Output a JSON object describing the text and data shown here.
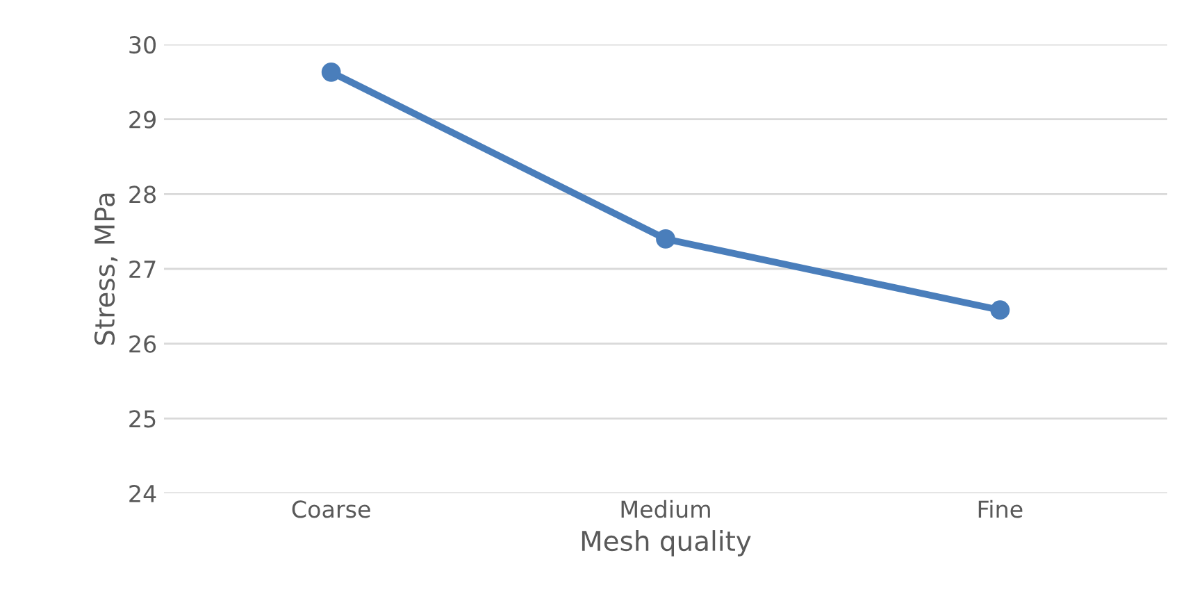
{
  "chart_data": {
    "type": "line",
    "xlabel": "Mesh quality",
    "ylabel": "Stress, MPa",
    "categories": [
      "Coarse",
      "Medium",
      "Fine"
    ],
    "series": [
      {
        "color": "#4a7ebb",
        "values": [
          29.63,
          27.4,
          26.45
        ]
      }
    ],
    "ylim": [
      24,
      30
    ],
    "yticks": [
      24,
      25,
      26,
      27,
      28,
      29,
      30
    ],
    "grid": "y",
    "marker": "circle",
    "line_style": "solid",
    "legend": false
  }
}
